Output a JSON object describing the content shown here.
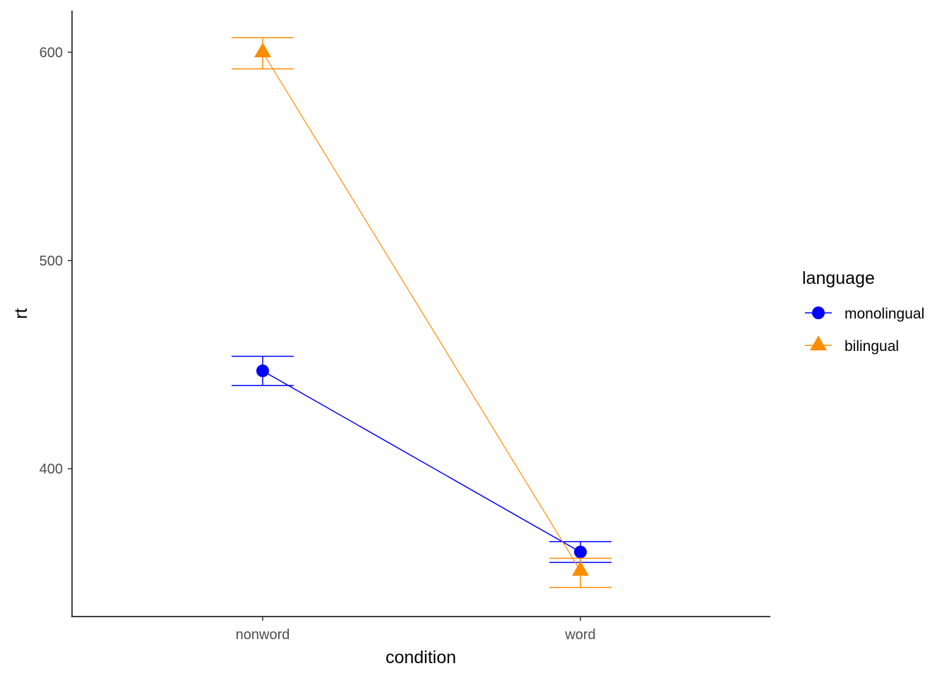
{
  "chart_data": {
    "type": "line",
    "xlabel": "condition",
    "ylabel": "rt",
    "categories": [
      "nonword",
      "word"
    ],
    "y_ticks": [
      400,
      500,
      600
    ],
    "ylim": [
      329,
      620
    ],
    "grid": false,
    "legend": {
      "title": "language",
      "placement": "right"
    },
    "series": [
      {
        "name": "monolingual",
        "color": "#0000ff",
        "marker": "circle",
        "values": [
          447,
          360
        ],
        "error_low": [
          440,
          355
        ],
        "error_high": [
          454,
          365
        ]
      },
      {
        "name": "bilingual",
        "color": "#ff8c00",
        "marker": "triangle",
        "values": [
          600,
          351
        ],
        "error_low": [
          592,
          343
        ],
        "error_high": [
          607,
          357
        ]
      }
    ]
  }
}
